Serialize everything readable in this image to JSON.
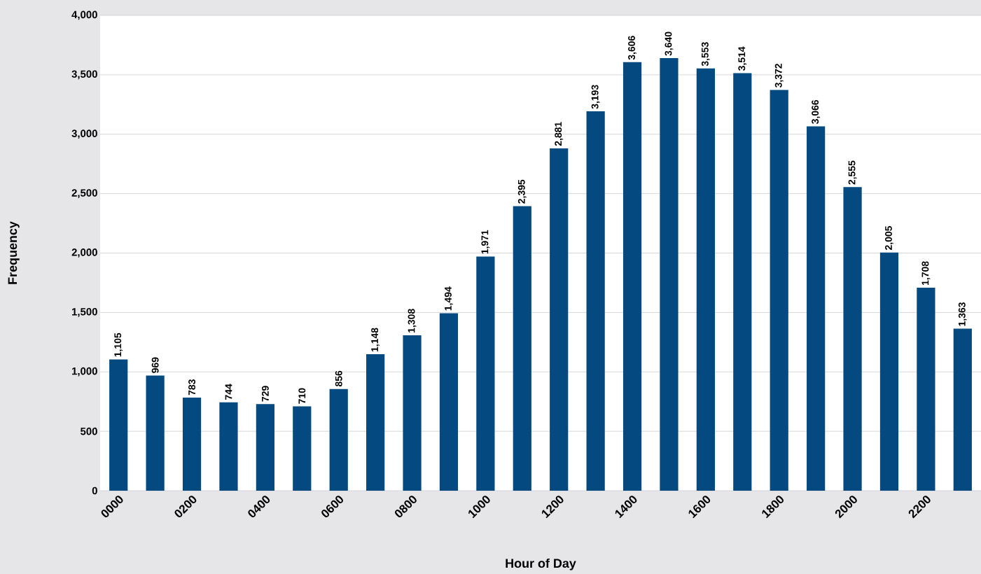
{
  "chart_data": {
    "type": "bar",
    "xlabel": "Hour of Day",
    "ylabel": "Frequency",
    "categories": [
      "0000",
      null,
      "0200",
      null,
      "0400",
      null,
      "0600",
      null,
      "0800",
      null,
      "1000",
      null,
      "1200",
      null,
      "1400",
      null,
      "1600",
      null,
      "1800",
      null,
      "2000",
      null,
      "2200",
      null
    ],
    "values": [
      1105,
      969,
      783,
      744,
      729,
      710,
      856,
      1148,
      1308,
      1494,
      1971,
      2395,
      2881,
      3193,
      3606,
      3640,
      3553,
      3514,
      3372,
      3066,
      2555,
      2005,
      1708,
      1363
    ],
    "value_labels": [
      "1,105",
      "969",
      "783",
      "744",
      "729",
      "710",
      "856",
      "1,148",
      "1,308",
      "1,494",
      "1,971",
      "2,395",
      "2,881",
      "3,193",
      "3,606",
      "3,640",
      "3,553",
      "3,514",
      "3,372",
      "3,066",
      "2,555",
      "2,005",
      "1,708",
      "1,363"
    ],
    "color": "#044a80",
    "ylim": [
      0,
      4000
    ],
    "yticks": [
      0,
      500,
      {
        "value": 1000,
        "label": "1,000"
      },
      {
        "value": 1500,
        "label": "1,500"
      },
      {
        "value": 2000,
        "label": "2,000"
      },
      {
        "value": 2500,
        "label": "2,500"
      },
      {
        "value": 3000,
        "label": "3,000"
      },
      {
        "value": 3500,
        "label": "3,500"
      },
      {
        "value": 4000,
        "label": "4,000"
      }
    ],
    "grid": "y"
  }
}
